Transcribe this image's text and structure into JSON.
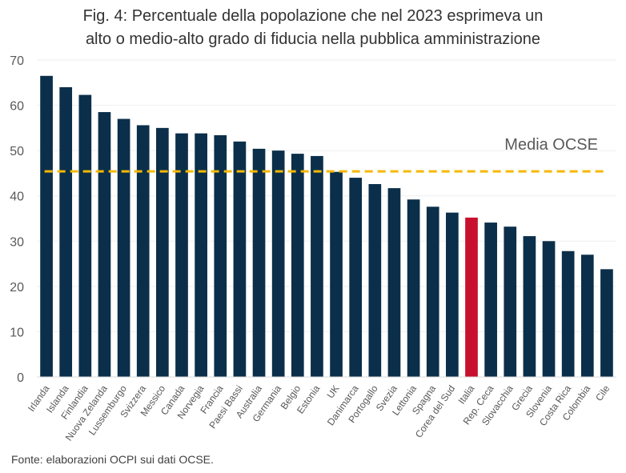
{
  "title_lines": [
    "Fig. 4: Percentuale della popolazione che nel 2023 esprimeva un",
    "alto o medio-alto grado di fiducia nella pubblica amministrazione"
  ],
  "source": "Fonte: elaborazioni OCPI sui dati OCSE.",
  "colors": {
    "bar": "#0b2f4a",
    "highlight": "#c8102e",
    "reference_line": "#f5b800",
    "gridline": "#efefef"
  },
  "chart_data": {
    "type": "bar",
    "title": "Fig. 4: Percentuale della popolazione che nel 2023 esprimeva un alto o medio-alto grado di fiducia nella pubblica amministrazione",
    "xlabel": "",
    "ylabel": "",
    "ylim": [
      0,
      70
    ],
    "yticks": [
      0,
      10,
      20,
      30,
      40,
      50,
      60,
      70
    ],
    "grid": true,
    "categories": [
      "Irlanda",
      "Islanda",
      "Finlandia",
      "Nuova Zelanda",
      "Lussemburgo",
      "Svizzera",
      "Messico",
      "Canada",
      "Norvegia",
      "Francia",
      "Paesi Bassi",
      "Australia",
      "Germania",
      "Belgio",
      "Estonia",
      "UK",
      "Danimarca",
      "Portogallo",
      "Svezia",
      "Lettonia",
      "Spagna",
      "Corea del Sud",
      "Italia",
      "Rep. Ceca",
      "Slovacchia",
      "Grecia",
      "Slovenia",
      "Costa Rica",
      "Colombia",
      "Cile"
    ],
    "values": [
      66.5,
      64.0,
      62.3,
      58.5,
      57.0,
      55.6,
      55.0,
      53.8,
      53.8,
      53.4,
      52.0,
      50.4,
      50.0,
      49.3,
      48.8,
      45.3,
      44.0,
      42.6,
      41.7,
      39.2,
      37.6,
      36.3,
      35.2,
      34.1,
      33.2,
      31.1,
      30.0,
      27.8,
      27.0,
      23.8
    ],
    "highlight": "Italia",
    "reference": {
      "label": "Media OCSE",
      "value": 45.4
    }
  }
}
